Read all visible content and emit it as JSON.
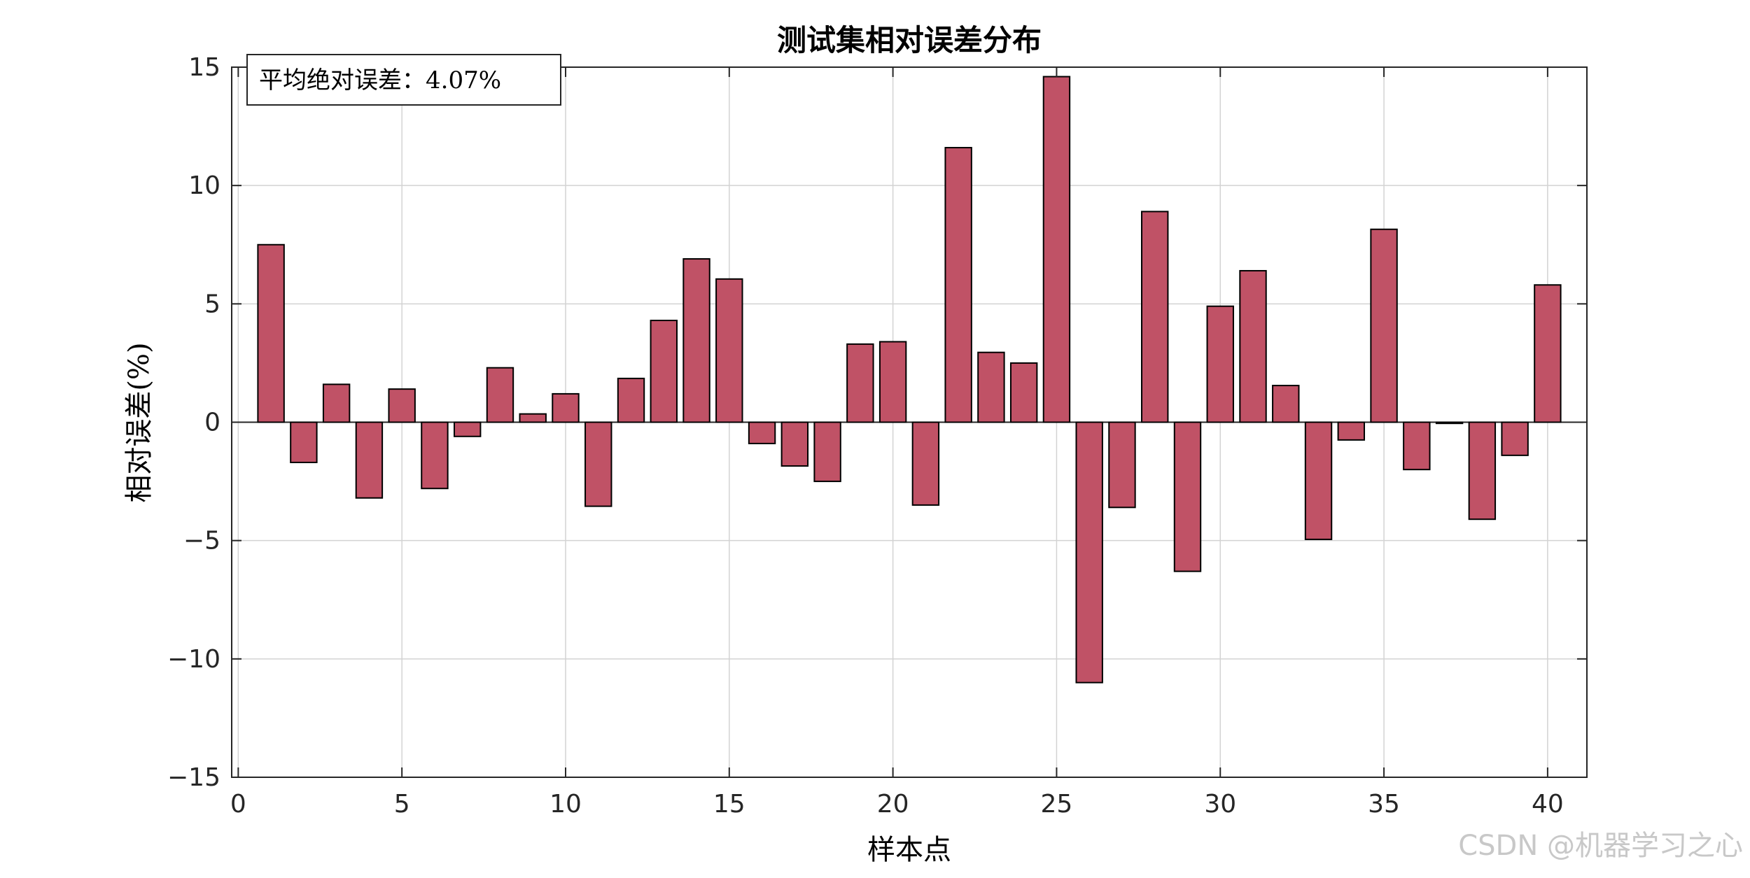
{
  "chart_data": {
    "type": "bar",
    "title": "测试集相对误差分布",
    "xlabel": "样本点",
    "ylabel": "相对误差(%)",
    "annotation": "平均绝对误差：4.07%",
    "x": [
      1,
      2,
      3,
      4,
      5,
      6,
      7,
      8,
      9,
      10,
      11,
      12,
      13,
      14,
      15,
      16,
      17,
      18,
      19,
      20,
      21,
      22,
      23,
      24,
      25,
      26,
      27,
      28,
      29,
      30,
      31,
      32,
      33,
      34,
      35,
      36,
      37,
      38,
      39,
      40
    ],
    "values": [
      7.5,
      -1.7,
      1.6,
      -3.2,
      1.4,
      -2.8,
      -0.6,
      2.3,
      0.35,
      1.2,
      -3.55,
      1.85,
      4.3,
      6.9,
      6.05,
      -0.9,
      -1.85,
      -2.5,
      3.3,
      3.4,
      -3.5,
      11.6,
      2.95,
      2.5,
      14.6,
      -11.0,
      -3.6,
      8.9,
      -6.3,
      4.9,
      6.4,
      1.55,
      -4.95,
      -0.75,
      8.15,
      -2.0,
      -0.05,
      -4.1,
      -1.4,
      5.8
    ],
    "xlim": [
      -0.2,
      41.2
    ],
    "ylim": [
      -15,
      15
    ],
    "xticks": [
      0,
      5,
      10,
      15,
      20,
      25,
      30,
      35,
      40
    ],
    "yticks": [
      -15,
      -10,
      -5,
      0,
      5,
      10,
      15
    ],
    "xtick_labels": [
      "0",
      "5",
      "10",
      "15",
      "20",
      "25",
      "30",
      "35",
      "40"
    ],
    "ytick_labels": [
      "−15",
      "−10",
      "−5",
      "0",
      "5",
      "10",
      "15"
    ],
    "grid": true,
    "colors": {
      "bar_fill": "#c05266",
      "bar_edge": "#000000",
      "grid": "#d3d3d3",
      "axes": "#262626",
      "text": "#000000",
      "watermark": "#c8c8c8"
    }
  },
  "watermark": "CSDN @机器学习之心"
}
